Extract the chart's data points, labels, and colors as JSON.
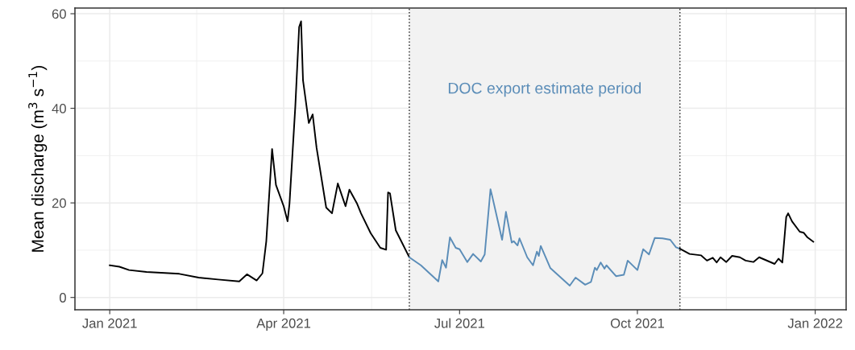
{
  "chart_data": {
    "type": "line",
    "ylabel": "Mean discharge (m$^{3}$ s$^{−1}$)",
    "series": [
      {
        "color": "#000000",
        "x": [
          "2021-01-01",
          "2021-01-06",
          "2021-01-11",
          "2021-01-20",
          "2021-02-06",
          "2021-02-16",
          "2021-02-26",
          "2021-03-09",
          "2021-03-13",
          "2021-03-18",
          "2021-03-21",
          "2021-03-23",
          "2021-03-26",
          "2021-03-28",
          "2021-04-01",
          "2021-04-03",
          "2021-04-04",
          "2021-04-07",
          "2021-04-09",
          "2021-04-10",
          "2021-04-11",
          "2021-04-14",
          "2021-04-16",
          "2021-04-18",
          "2021-04-23",
          "2021-04-26",
          "2021-04-29",
          "2021-05-03",
          "2021-05-05",
          "2021-05-09",
          "2021-05-11",
          "2021-05-16",
          "2021-05-21",
          "2021-05-24",
          "2021-05-25",
          "2021-05-26",
          "2021-05-29",
          "2021-06-05"
        ],
        "values": [
          6.8,
          6.5,
          5.8,
          5.4,
          5.0,
          4.2,
          3.8,
          3.4,
          4.9,
          3.6,
          5.1,
          11.9,
          31.4,
          23.8,
          19.3,
          16.1,
          19.8,
          40.3,
          57.2,
          58.4,
          45.9,
          36.9,
          38.7,
          31.7,
          19.0,
          17.8,
          24.1,
          19.3,
          22.8,
          19.8,
          17.8,
          13.6,
          10.5,
          10.1,
          22.2,
          22.0,
          14.2,
          8.5
        ]
      },
      {
        "color": "#5b8db8",
        "x": [
          "2021-06-05",
          "2021-06-11",
          "2021-06-20",
          "2021-06-22",
          "2021-06-24",
          "2021-06-26",
          "2021-06-29",
          "2021-07-01",
          "2021-07-05",
          "2021-07-08",
          "2021-07-12",
          "2021-07-14",
          "2021-07-17",
          "2021-07-18",
          "2021-07-23",
          "2021-07-25",
          "2021-07-28",
          "2021-07-29",
          "2021-07-31",
          "2021-08-01",
          "2021-08-05",
          "2021-08-08",
          "2021-08-10",
          "2021-08-11",
          "2021-08-12",
          "2021-08-17",
          "2021-08-27",
          "2021-08-30",
          "2021-09-04",
          "2021-09-07",
          "2021-09-09",
          "2021-09-10",
          "2021-09-12",
          "2021-09-14",
          "2021-09-15",
          "2021-09-20",
          "2021-09-24",
          "2021-09-26",
          "2021-10-01",
          "2021-10-04",
          "2021-10-07",
          "2021-10-10",
          "2021-10-14",
          "2021-10-18",
          "2021-10-21",
          "2021-10-23"
        ],
        "values": [
          8.5,
          6.8,
          3.4,
          7.9,
          6.3,
          12.7,
          10.5,
          10.2,
          7.5,
          9.2,
          7.6,
          9.1,
          22.9,
          21.2,
          12.2,
          18.1,
          11.6,
          11.9,
          11.0,
          12.5,
          8.5,
          6.8,
          9.7,
          8.8,
          10.9,
          6.2,
          2.5,
          4.2,
          2.7,
          3.3,
          6.3,
          5.8,
          7.4,
          6.1,
          6.8,
          4.5,
          4.8,
          7.8,
          5.8,
          10.2,
          9.1,
          12.6,
          12.5,
          12.2,
          10.6,
          10.3
        ]
      },
      {
        "color": "#000000",
        "x": [
          "2021-10-23",
          "2021-10-28",
          "2021-11-03",
          "2021-11-06",
          "2021-11-09",
          "2021-11-11",
          "2021-11-13",
          "2021-11-16",
          "2021-11-19",
          "2021-11-23",
          "2021-11-26",
          "2021-11-30",
          "2021-12-03",
          "2021-12-11",
          "2021-12-13",
          "2021-12-15",
          "2021-12-17",
          "2021-12-18",
          "2021-12-20",
          "2021-12-24",
          "2021-12-26",
          "2021-12-28",
          "2021-12-31"
        ],
        "values": [
          10.3,
          9.2,
          8.9,
          7.8,
          8.4,
          7.4,
          8.5,
          7.5,
          8.8,
          8.5,
          7.8,
          7.5,
          8.5,
          7.1,
          8.2,
          7.4,
          17.0,
          17.8,
          16.1,
          13.9,
          13.7,
          12.7,
          11.8
        ]
      }
    ],
    "bands": [
      {
        "axis": "x",
        "from": "2021-06-05",
        "to": "2021-10-23",
        "color": "#f2f2f2"
      }
    ],
    "ref_lines": [
      {
        "axis": "x",
        "value": "2021-06-05",
        "color": "#333333",
        "line_style": "dotted"
      },
      {
        "axis": "x",
        "value": "2021-10-23",
        "color": "#333333",
        "line_style": "dotted"
      }
    ],
    "annotations": [
      "DOC export estimate period"
    ],
    "xlim": [
      "2020-12-14",
      "2022-01-17"
    ],
    "xticks": [
      {
        "value": "2021-01-01",
        "label": "Jan 2021"
      },
      {
        "value": "2021-04-01",
        "label": "Apr 2021"
      },
      {
        "value": "2021-07-01",
        "label": "Jul 2021"
      },
      {
        "value": "2021-10-01",
        "label": "Oct 2021"
      },
      {
        "value": "2022-01-01",
        "label": "Jan 2022"
      }
    ],
    "ylim": [
      -2.6,
      61.2
    ],
    "yticks": [
      0,
      20,
      40,
      60
    ],
    "grid": true,
    "line_style": "solid",
    "marker": "none"
  }
}
